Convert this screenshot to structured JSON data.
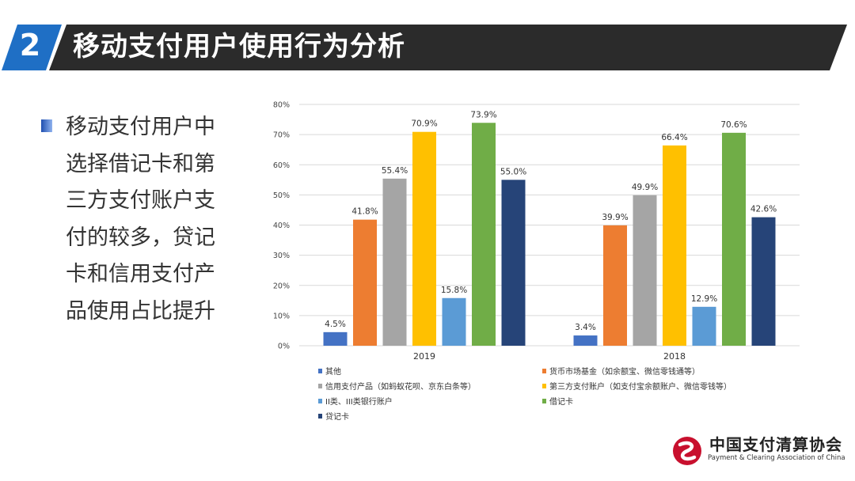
{
  "header": {
    "number": "2",
    "title": "移动支付用户使用行为分析"
  },
  "bullet": {
    "text": "移动支付用户中选择借记卡和第三方支付账户支付的较多，贷记卡和信用支付产品使用占比提升"
  },
  "logo": {
    "name": "中国支付清算协会",
    "subtitle": "Payment & Clearing Association of China"
  },
  "colors": {
    "header_dark": "#2b2b2b",
    "header_blue": "#1f6fc5"
  },
  "chart_data": {
    "type": "bar",
    "categories": [
      "2019",
      "2018"
    ],
    "ylim": [
      0,
      80
    ],
    "yticks": [
      0,
      10,
      20,
      30,
      40,
      50,
      60,
      70,
      80
    ],
    "ytick_labels": [
      "0%",
      "10%",
      "20%",
      "30%",
      "40%",
      "50%",
      "60%",
      "70%",
      "80%"
    ],
    "grid": true,
    "legend_position": "bottom",
    "series": [
      {
        "name": "其他",
        "values": [
          4.5,
          3.4
        ],
        "labels": [
          "4.5%",
          "3.4%"
        ],
        "color": "#4472c4"
      },
      {
        "name": "货币市场基金（如余额宝、微信零钱通等）",
        "values": [
          41.8,
          39.9
        ],
        "labels": [
          "41.8%",
          "39.9%"
        ],
        "color": "#ed7d31"
      },
      {
        "name": "信用支付产品（如蚂蚁花呗、京东白条等）",
        "values": [
          55.4,
          49.9
        ],
        "labels": [
          "55.4%",
          "49.9%"
        ],
        "color": "#a5a5a5"
      },
      {
        "name": "第三方支付账户（如支付宝余额账户、微信零钱等）",
        "values": [
          70.9,
          66.4
        ],
        "labels": [
          "70.9%",
          "66.4%"
        ],
        "color": "#ffc000"
      },
      {
        "name": "II类、III类银行账户",
        "values": [
          15.8,
          12.9
        ],
        "labels": [
          "15.8%",
          "12.9%"
        ],
        "color": "#5b9bd5"
      },
      {
        "name": "借记卡",
        "values": [
          73.9,
          70.6
        ],
        "labels": [
          "73.9%",
          "70.6%"
        ],
        "color": "#70ad47"
      },
      {
        "name": "贷记卡",
        "values": [
          55.0,
          42.6
        ],
        "labels": [
          "55.0%",
          "42.6%"
        ],
        "color": "#264478"
      }
    ]
  }
}
